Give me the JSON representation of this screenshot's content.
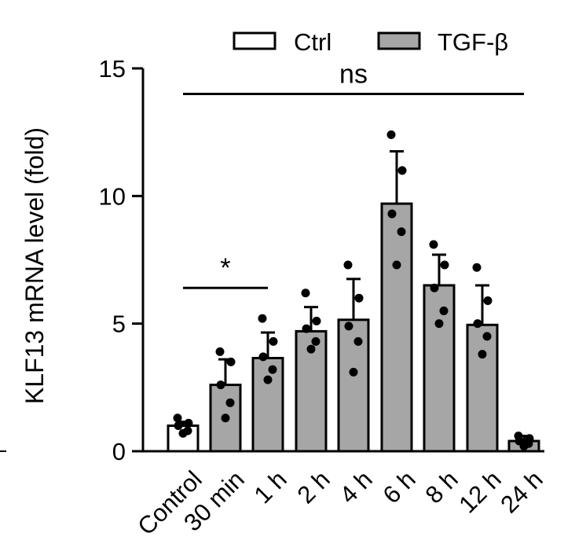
{
  "chart_data": {
    "type": "bar",
    "ylabel": "KLF13 mRNA level (fold)",
    "ylim": [
      0,
      15
    ],
    "yticks": [
      0,
      5,
      10,
      15
    ],
    "categories": [
      "Control",
      "30 min",
      "1 h",
      "2 h",
      "4 h",
      "6 h",
      "8 h",
      "12 h",
      "24 h"
    ],
    "groups": [
      "Ctrl",
      "TGF-β",
      "TGF-β",
      "TGF-β",
      "TGF-β",
      "TGF-β",
      "TGF-β",
      "TGF-β",
      "TGF-β"
    ],
    "values": [
      1.0,
      2.6,
      3.65,
      4.7,
      5.15,
      9.7,
      6.5,
      4.95,
      0.4
    ],
    "errors": [
      0.15,
      1.0,
      1.0,
      0.95,
      1.6,
      2.05,
      1.2,
      1.55,
      0.2
    ],
    "points": [
      [
        1.3,
        1.1,
        1.0,
        0.8,
        0.7
      ],
      [
        3.9,
        3.5,
        2.6,
        1.9,
        1.3
      ],
      [
        5.2,
        4.3,
        3.7,
        3.2,
        2.8
      ],
      [
        6.2,
        5.1,
        4.8,
        4.3,
        4.0
      ],
      [
        7.3,
        6.0,
        4.9,
        4.3,
        3.1
      ],
      [
        12.4,
        11.0,
        9.3,
        8.6,
        7.3
      ],
      [
        8.1,
        7.3,
        6.4,
        5.5,
        5.0
      ],
      [
        7.2,
        5.9,
        5.0,
        4.5,
        3.8
      ],
      [
        0.6,
        0.5,
        0.4,
        0.3,
        0.2
      ]
    ],
    "legend": {
      "placement": "top",
      "items": [
        {
          "label": "Ctrl",
          "color": "#ffffff"
        },
        {
          "label": "TGF-β",
          "color": "#a6a6a6"
        }
      ]
    },
    "annotations": [
      {
        "text": "ns",
        "from": "Control",
        "to": "24 h",
        "y": 14.0
      },
      {
        "text": "*",
        "from": "Control",
        "to": "1 h",
        "y": 6.4
      }
    ],
    "colors": {
      "ctrl_fill": "#ffffff",
      "tgf_fill": "#a6a6a6",
      "stroke": "#000000"
    }
  }
}
